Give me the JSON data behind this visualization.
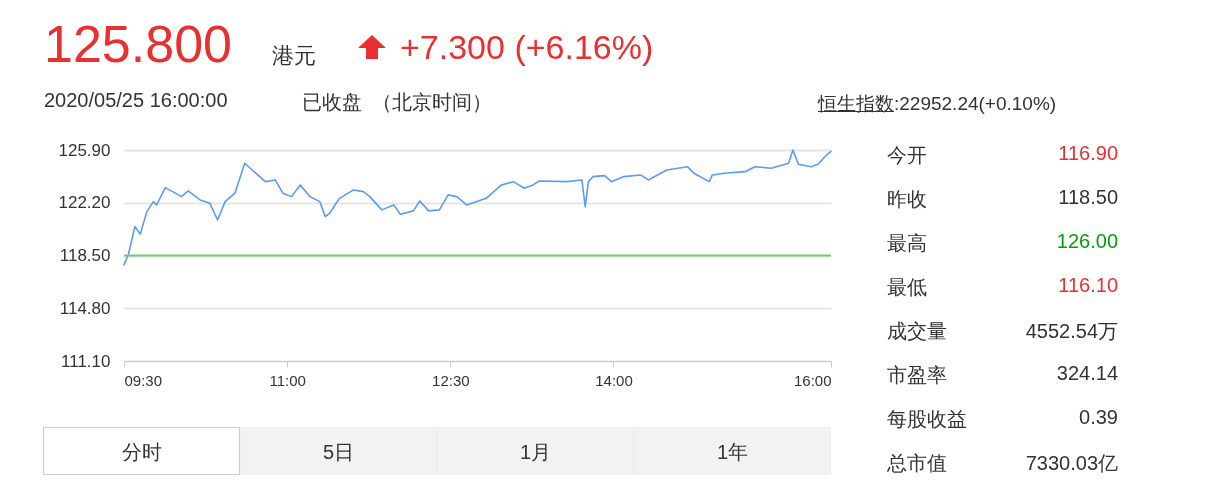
{
  "chart_data": {
    "type": "line",
    "x": [
      9.5,
      9.54,
      9.6,
      9.65,
      9.71,
      9.77,
      9.8,
      9.88,
      10.03,
      10.09,
      10.2,
      10.29,
      10.36,
      10.43,
      10.52,
      10.61,
      10.66,
      10.8,
      10.89,
      10.96,
      11.04,
      11.12,
      11.21,
      11.3,
      11.35,
      11.39,
      11.48,
      11.61,
      11.7,
      11.76,
      11.87,
      11.98,
      12.04,
      12.16,
      12.22,
      12.3,
      12.4,
      12.48,
      12.56,
      12.65,
      12.83,
      12.97,
      13.08,
      13.18,
      13.26,
      13.32,
      13.57,
      13.71,
      13.74,
      13.77,
      13.81,
      13.92,
      13.98,
      14.09,
      14.25,
      14.32,
      14.49,
      14.68,
      14.74,
      14.88,
      14.91,
      15.02,
      15.21,
      15.3,
      15.45,
      15.61,
      15.65,
      15.7,
      15.82,
      15.88,
      15.96,
      16
    ],
    "series": [
      {
        "color": "#5b9bf8",
        "values": [
          117.84,
          118.55,
          120.53,
          120.0,
          121.58,
          122.28,
          122.05,
          123.26,
          122.63,
          123.03,
          122.4,
          122.16,
          120.99,
          122.28,
          122.87,
          124.97,
          124.62,
          123.68,
          123.8,
          122.87,
          122.63,
          123.45,
          122.63,
          122.28,
          121.23,
          121.46,
          122.51,
          123.1,
          122.98,
          122.63,
          121.7,
          122.05,
          121.39,
          121.63,
          122.32,
          121.63,
          121.7,
          122.75,
          122.63,
          122.05,
          122.51,
          123.45,
          123.68,
          123.22,
          123.45,
          123.73,
          123.68,
          123.8,
          121.93,
          123.68,
          124.03,
          124.1,
          123.68,
          124.03,
          124.15,
          123.8,
          124.5,
          124.73,
          124.27,
          123.68,
          124.15,
          124.27,
          124.38,
          124.73,
          124.62,
          124.97,
          125.9,
          124.9,
          124.73,
          124.9,
          125.55,
          125.8
        ]
      }
    ],
    "xlim": [
      9.5,
      16
    ],
    "xticks": [
      {
        "value": 9.5,
        "label": "09:30"
      },
      {
        "value": 11,
        "label": "11:00"
      },
      {
        "value": 12.5,
        "label": "12:30"
      },
      {
        "value": 14,
        "label": "14:00"
      },
      {
        "value": 16,
        "label": "16:00"
      }
    ],
    "ylim": [
      111.1,
      125.9
    ],
    "yticks": [
      {
        "value": 111.1,
        "label": "111.10"
      },
      {
        "value": 114.8,
        "label": "114.80"
      },
      {
        "value": 118.5,
        "label": "118.50"
      },
      {
        "value": 122.2,
        "label": "122.20"
      },
      {
        "value": 125.9,
        "label": "125.90"
      }
    ],
    "grid": "y",
    "ref_lines": [
      {
        "axis": "y",
        "value": 118.5,
        "color": "#7cc47c"
      }
    ],
    "annotations": [
      "125.800",
      "港元",
      "+7.300 (+6.16%)",
      "2020/05/25 16:00:00",
      "已收盘",
      "（北京时间）",
      "恒生指数",
      ":22952.24(+0.10%)",
      "今开",
      "116.90",
      "昨收",
      "118.50",
      "最高",
      "126.00",
      "最低",
      "116.10",
      "成交量",
      "4552.54万",
      "市盈率",
      "324.14",
      "每股收益",
      "0.39",
      "总市值",
      "7330.03亿",
      "分时",
      "5日",
      "1月",
      "1年"
    ]
  }
}
